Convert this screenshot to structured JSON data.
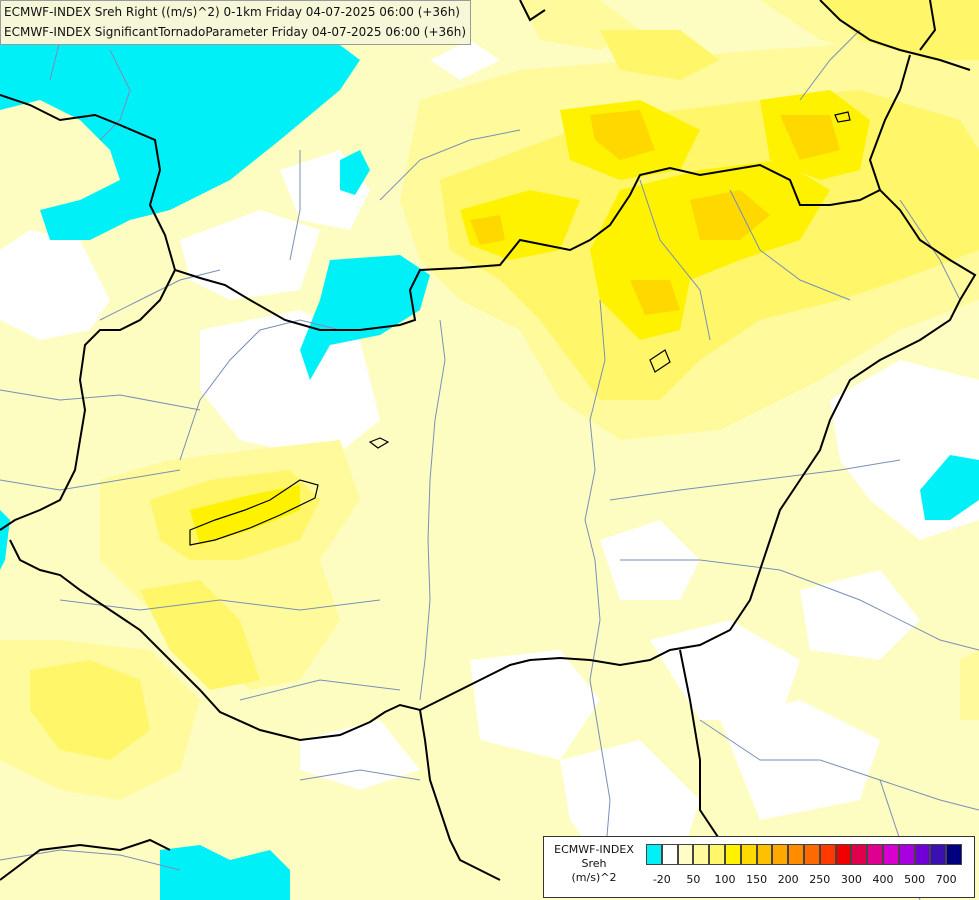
{
  "header": {
    "line1": "ECMWF-INDEX Sreh Right ((m/s)^2) 0-1km Friday 04-07-2025 06:00 (+36h)",
    "line2": "ECMWF-INDEX SignificantTornadoParameter Friday 04-07-2025 06:00 (+36h)"
  },
  "legend": {
    "title_line1": "ECMWF-INDEX",
    "title_line2": "Sreh",
    "title_line3": "(m/s)^2",
    "colors": [
      "#00f0f8",
      "#ffffff",
      "#fffcc8",
      "#fffa9c",
      "#fff66a",
      "#fff200",
      "#ffd800",
      "#ffc000",
      "#ffa800",
      "#ff8c00",
      "#ff6a00",
      "#ff3a00",
      "#f00000",
      "#e0004c",
      "#e00090",
      "#d800d0",
      "#a800e0",
      "#7000d8",
      "#3a10b0",
      "#000080"
    ],
    "tick_labels": [
      "-20",
      "50",
      "100",
      "150",
      "200",
      "250",
      "300",
      "400",
      "500",
      "700"
    ]
  },
  "colors": {
    "cyan": "#00f0f8",
    "pale_yellow": "#fffcc8",
    "light_yellow": "#fffa9c",
    "yellow": "#fff66a",
    "bright_yellow": "#fff200",
    "gold": "#ffd800",
    "border": "#000000",
    "river": "#7a8fb8"
  }
}
